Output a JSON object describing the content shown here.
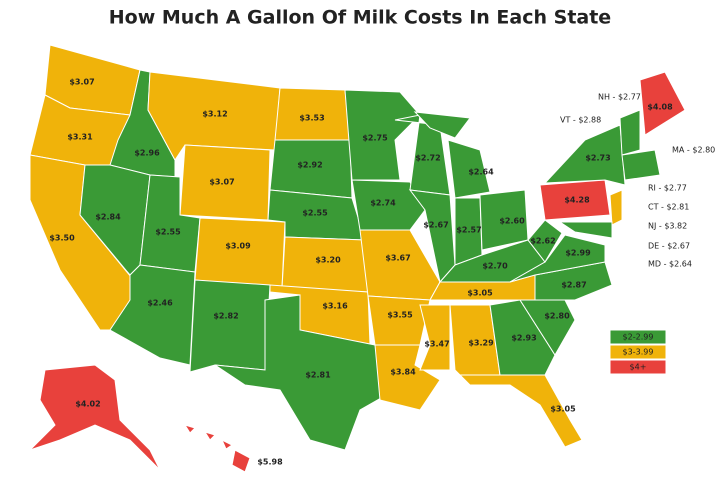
{
  "title": "How Much A Gallon Of Milk Costs In Each State",
  "states": [
    {
      "label": "$3.07",
      "color": "#f0b30a"
    },
    {
      "label": "$3.31",
      "color": "#f0b30a"
    },
    {
      "label": "$3.50",
      "color": "#f0b30a"
    },
    {
      "label": "$2.96",
      "color": "#3a9a36"
    },
    {
      "label": "$2.84",
      "color": "#3a9a36"
    },
    {
      "label": "$3.12",
      "color": "#f0b30a"
    },
    {
      "label": "$3.07",
      "color": "#f0b30a"
    },
    {
      "label": "$2.55",
      "color": "#3a9a36"
    },
    {
      "label": "$2.46",
      "color": "#3a9a36"
    },
    {
      "label": "$3.09",
      "color": "#f0b30a"
    },
    {
      "label": "$2.82",
      "color": "#3a9a36"
    },
    {
      "label": "$3.53",
      "color": "#f0b30a"
    },
    {
      "label": "$2.92",
      "color": "#3a9a36"
    },
    {
      "label": "$2.55",
      "color": "#3a9a36"
    },
    {
      "label": "$3.20",
      "color": "#f0b30a"
    },
    {
      "label": "$3.16",
      "color": "#f0b30a"
    },
    {
      "label": "$2.81",
      "color": "#3a9a36"
    },
    {
      "label": "$2.75",
      "color": "#3a9a36"
    },
    {
      "label": "$2.74",
      "color": "#3a9a36"
    },
    {
      "label": "$3.67",
      "color": "#f0b30a"
    },
    {
      "label": "$3.55",
      "color": "#f0b30a"
    },
    {
      "label": "$3.84",
      "color": "#f0b30a"
    },
    {
      "label": "$2.72",
      "color": "#3a9a36"
    },
    {
      "label": "$2.67",
      "color": "#3a9a36"
    },
    {
      "label": "$2.64",
      "color": "#3a9a36"
    },
    {
      "label": "$2.57",
      "color": "#3a9a36"
    },
    {
      "label": "$2.60",
      "color": "#3a9a36"
    },
    {
      "label": "$2.70",
      "color": "#3a9a36"
    },
    {
      "label": "$3.05",
      "color": "#f0b30a"
    },
    {
      "label": "$3.47",
      "color": "#f0b30a"
    },
    {
      "label": "$3.29",
      "color": "#f0b30a"
    },
    {
      "label": "$2.93",
      "color": "#3a9a36"
    },
    {
      "label": "$3.05",
      "color": "#f0b30a"
    },
    {
      "label": "$2.80",
      "color": "#3a9a36"
    },
    {
      "label": "$2.87",
      "color": "#3a9a36"
    },
    {
      "label": "$2.99",
      "color": "#3a9a36"
    },
    {
      "label": "$2.62",
      "color": "#3a9a36"
    },
    {
      "label": "$4.28",
      "color": "#e8413c"
    },
    {
      "label": "$2.73",
      "color": "#3a9a36"
    },
    {
      "color": "#f0b30a"
    },
    {
      "color": "#3a9a36"
    },
    {
      "color": "#3a9a36"
    },
    {
      "color": "#3a9a36"
    },
    {
      "label": "$4.08",
      "color": "#e8413c"
    },
    {
      "label": "$4.02",
      "color": "#e8413c"
    },
    {
      "label": "$5.98",
      "color": "#e8413c"
    }
  ],
  "callouts": [
    "NH - $2.77",
    "VT - $2.88",
    "MA - $2.80",
    "RI - $2.77",
    "CT - $2.81",
    "NJ - $3.82",
    "DE - $2.67",
    "MD - $2.64"
  ],
  "legend": [
    {
      "label": "$2-2.99",
      "color": "#3a9a36"
    },
    {
      "label": "$3-3.99",
      "color": "#f0b30a"
    },
    {
      "label": "$4+",
      "color": "#e8413c"
    }
  ]
}
